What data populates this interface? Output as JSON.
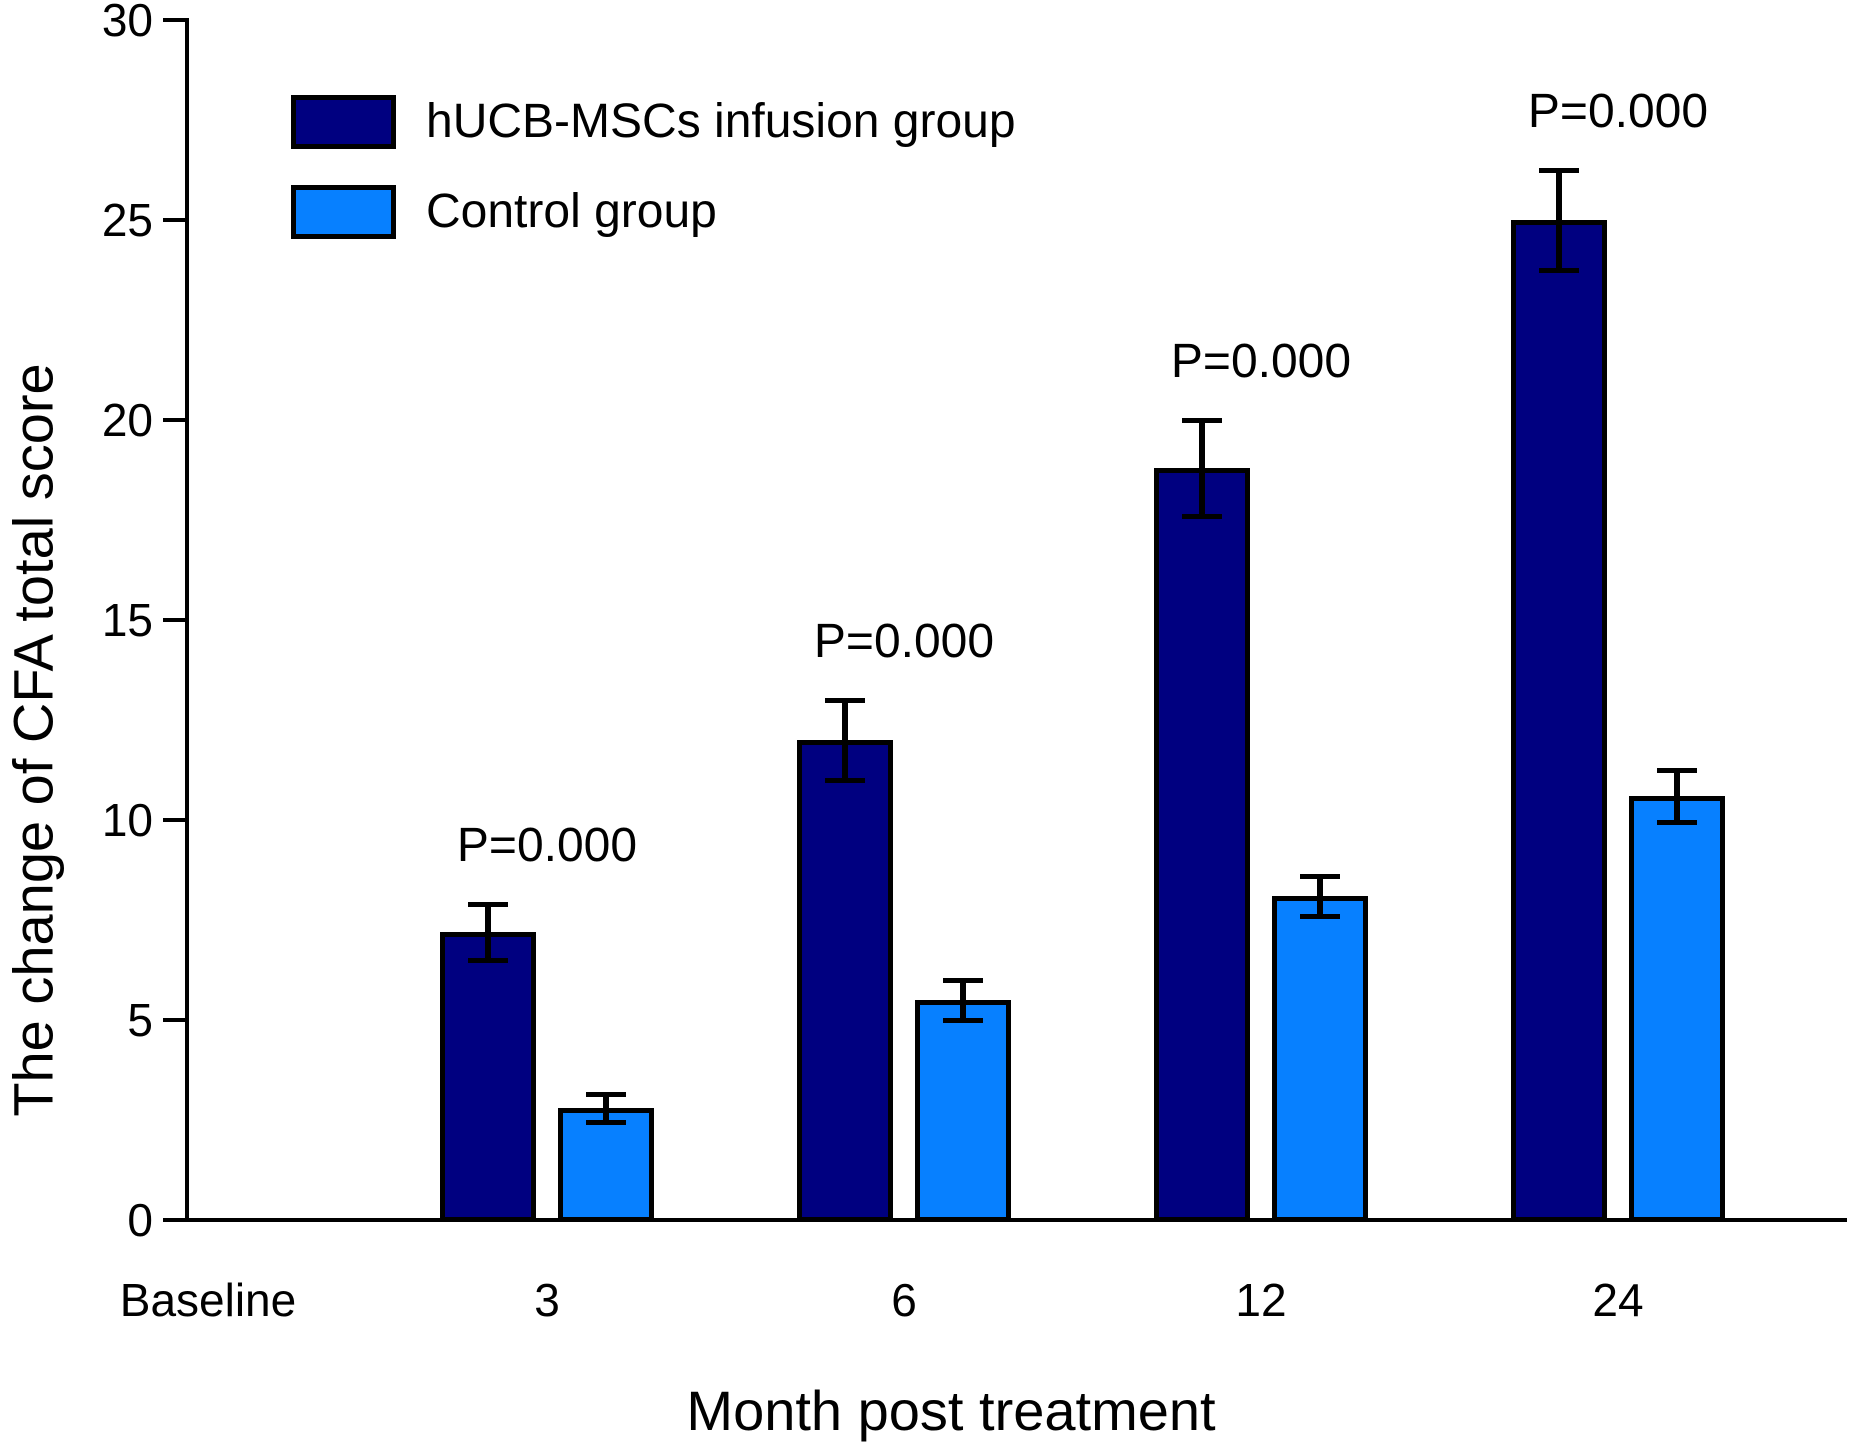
{
  "figure": {
    "background": "#FFFFFF",
    "text_color": "#000000",
    "axis_color": "#000000"
  },
  "chart_data": {
    "type": "bar",
    "title": "",
    "xlabel": "Month post treatment",
    "ylabel": "The change of CFA total score",
    "categories": [
      "Baseline",
      "3",
      "6",
      "12",
      "24"
    ],
    "ylim": [
      0,
      30
    ],
    "yticks": [
      0,
      5,
      10,
      15,
      20,
      25,
      30
    ],
    "grid": false,
    "legend_position": "top-left",
    "error_bars": "both-directions-capped",
    "series": [
      {
        "name": "hUCB-MSCs infusion group",
        "color": "#000080",
        "values": [
          null,
          7.2,
          12.0,
          18.8,
          25.0
        ],
        "errors": [
          null,
          0.7,
          1.0,
          1.2,
          1.25
        ]
      },
      {
        "name": "Control group",
        "color": "#0780FF",
        "values": [
          null,
          2.8,
          5.5,
          8.1,
          10.6
        ],
        "errors": [
          null,
          0.35,
          0.5,
          0.5,
          0.65
        ]
      }
    ],
    "annotations": [
      {
        "text": "P=0.000",
        "category": "3"
      },
      {
        "text": "P=0.000",
        "category": "6"
      },
      {
        "text": "P=0.000",
        "category": "12"
      },
      {
        "text": "P=0.000",
        "category": "24"
      }
    ]
  }
}
